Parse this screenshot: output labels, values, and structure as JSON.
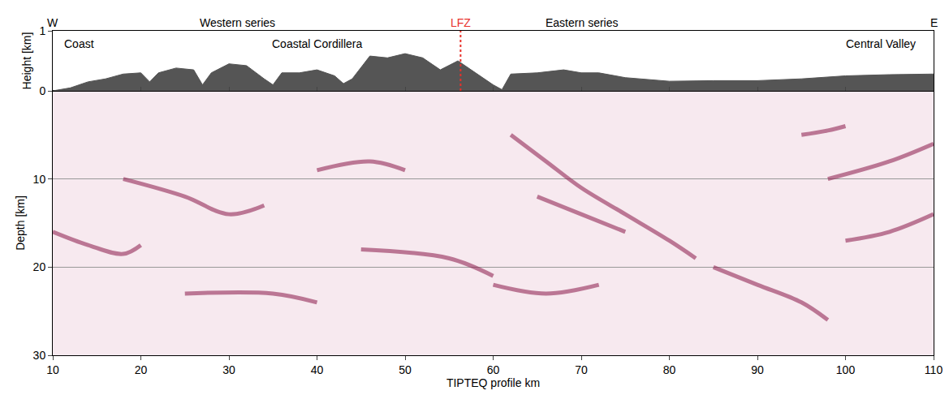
{
  "chart_data": [
    {
      "type": "area",
      "ylabel": "Height [km]",
      "x": [
        10,
        12,
        14,
        16,
        18,
        20,
        21,
        22,
        24,
        26,
        27,
        28,
        30,
        32,
        34,
        35,
        36,
        38,
        40,
        42,
        43,
        44,
        46,
        48,
        50,
        52,
        54,
        56,
        58,
        60,
        61,
        62,
        65,
        68,
        70,
        72,
        75,
        78,
        80,
        85,
        90,
        95,
        100,
        105,
        110
      ],
      "values": [
        0,
        0.05,
        0.15,
        0.2,
        0.28,
        0.3,
        0.15,
        0.3,
        0.38,
        0.35,
        0.1,
        0.3,
        0.45,
        0.42,
        0.2,
        0.1,
        0.3,
        0.3,
        0.35,
        0.25,
        0.12,
        0.2,
        0.58,
        0.55,
        0.62,
        0.55,
        0.35,
        0.5,
        0.3,
        0.1,
        0.02,
        0.28,
        0.3,
        0.35,
        0.3,
        0.3,
        0.22,
        0.18,
        0.16,
        0.17,
        0.17,
        0.2,
        0.25,
        0.27,
        0.28
      ],
      "color": "#555555",
      "xlim": [
        10,
        110
      ],
      "ylim": [
        0,
        1
      ],
      "yticks": [
        0,
        1
      ],
      "tick_labels": "y",
      "headers": [
        {
          "text": "W",
          "x": 10
        },
        {
          "text": "Western series",
          "x": 31
        },
        {
          "text": "LFZ",
          "x": 56.3,
          "color": "#e8312a",
          "line_style": "dotted"
        },
        {
          "text": "Eastern series",
          "x": 70
        },
        {
          "text": "E",
          "x": 110
        }
      ],
      "annotations": [
        {
          "text": "Coast",
          "x": 13,
          "y": 0.78
        },
        {
          "text": "Coastal Cordillera",
          "x": 40,
          "y": 0.78
        },
        {
          "text": "Central Valley",
          "x": 104,
          "y": 0.78
        }
      ]
    },
    {
      "type": "line",
      "xlabel": "TIPTEQ profile km",
      "ylabel": "Depth [km]",
      "xlim": [
        10,
        110
      ],
      "xticks": [
        10,
        20,
        30,
        40,
        50,
        60,
        70,
        80,
        90,
        100,
        110
      ],
      "ylim": [
        0,
        30
      ],
      "yticks": [
        10,
        20,
        30
      ],
      "grid": true,
      "color": "#8b1a4a",
      "series": [
        {
          "x": [
            10,
            14,
            18,
            20
          ],
          "values": [
            16,
            17.5,
            18.5,
            17.5
          ]
        },
        {
          "x": [
            18,
            25,
            30,
            34
          ],
          "values": [
            10,
            12,
            14,
            13
          ]
        },
        {
          "x": [
            40,
            46,
            50
          ],
          "values": [
            9,
            8,
            9
          ]
        },
        {
          "x": [
            62,
            66,
            70,
            75,
            80,
            83
          ],
          "values": [
            5,
            8,
            11,
            14,
            17,
            19
          ]
        },
        {
          "x": [
            65,
            70,
            75
          ],
          "values": [
            12,
            14,
            16
          ]
        },
        {
          "x": [
            85,
            90,
            95,
            98
          ],
          "values": [
            20,
            22,
            24,
            26
          ]
        },
        {
          "x": [
            60,
            66,
            72
          ],
          "values": [
            22,
            23,
            22
          ]
        },
        {
          "x": [
            25,
            35,
            40
          ],
          "values": [
            23,
            23,
            24
          ]
        },
        {
          "x": [
            95,
            98,
            100
          ],
          "values": [
            5,
            4.5,
            4
          ]
        },
        {
          "x": [
            98,
            105,
            110
          ],
          "values": [
            10,
            8,
            6
          ]
        },
        {
          "x": [
            100,
            105,
            110
          ],
          "values": [
            17,
            16,
            14
          ]
        },
        {
          "x": [
            45,
            55,
            60
          ],
          "values": [
            18,
            19,
            21
          ]
        }
      ]
    }
  ]
}
